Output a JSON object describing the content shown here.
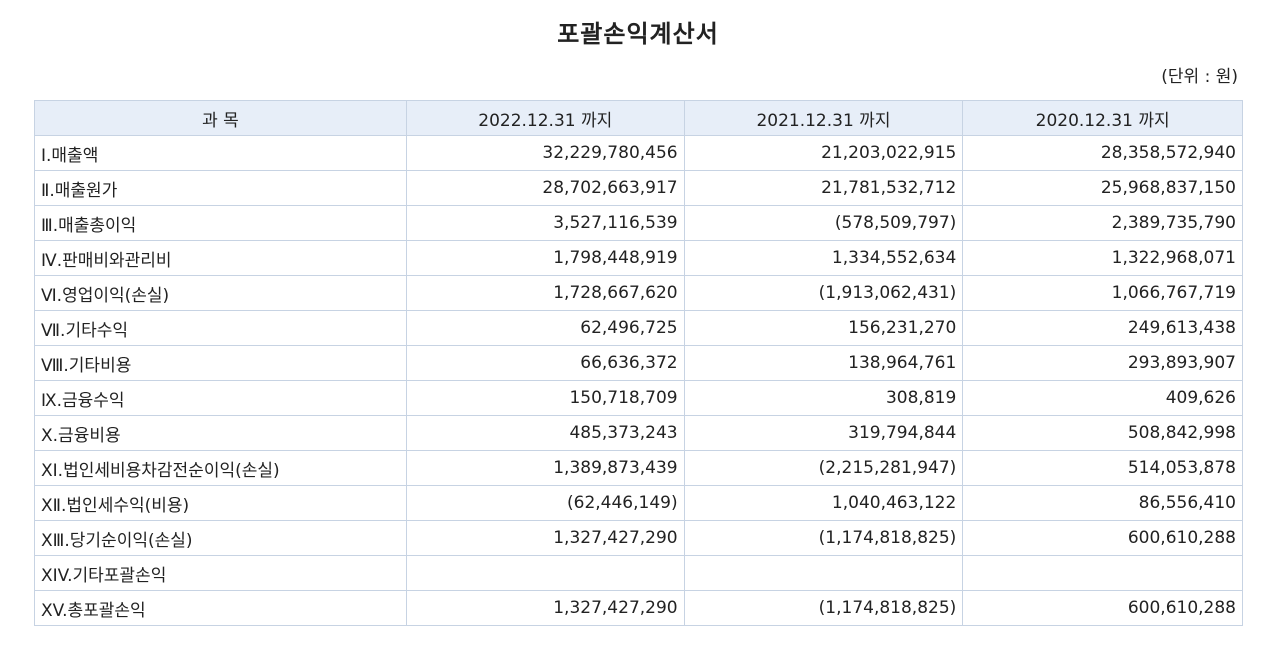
{
  "title": "포괄손익계산서",
  "unit": "(단위 : 원)",
  "headers": [
    "과  목",
    "2022.12.31 까지",
    "2021.12.31 까지",
    "2020.12.31 까지"
  ],
  "rows": [
    {
      "name": "Ⅰ.매출액",
      "v2022": "32,229,780,456",
      "v2021": "21,203,022,915",
      "v2020": "28,358,572,940"
    },
    {
      "name": "Ⅱ.매출원가",
      "v2022": "28,702,663,917",
      "v2021": "21,781,532,712",
      "v2020": "25,968,837,150"
    },
    {
      "name": "Ⅲ.매출총이익",
      "v2022": "3,527,116,539",
      "v2021": "(578,509,797)",
      "v2020": "2,389,735,790"
    },
    {
      "name": "Ⅳ.판매비와관리비",
      "v2022": "1,798,448,919",
      "v2021": "1,334,552,634",
      "v2020": "1,322,968,071"
    },
    {
      "name": "Ⅵ.영업이익(손실)",
      "v2022": "1,728,667,620",
      "v2021": "(1,913,062,431)",
      "v2020": "1,066,767,719"
    },
    {
      "name": "Ⅶ.기타수익",
      "v2022": "62,496,725",
      "v2021": "156,231,270",
      "v2020": "249,613,438"
    },
    {
      "name": "Ⅷ.기타비용",
      "v2022": "66,636,372",
      "v2021": "138,964,761",
      "v2020": "293,893,907"
    },
    {
      "name": "Ⅸ.금융수익",
      "v2022": "150,718,709",
      "v2021": "308,819",
      "v2020": "409,626"
    },
    {
      "name": "Ⅹ.금융비용",
      "v2022": "485,373,243",
      "v2021": "319,794,844",
      "v2020": "508,842,998"
    },
    {
      "name": "XI.법인세비용차감전순이익(손실)",
      "v2022": "1,389,873,439",
      "v2021": "(2,215,281,947)",
      "v2020": "514,053,878"
    },
    {
      "name": "ⅩⅡ.법인세수익(비용)",
      "v2022": "(62,446,149)",
      "v2021": "1,040,463,122",
      "v2020": "86,556,410"
    },
    {
      "name": "ⅩⅢ.당기순이익(손실)",
      "v2022": "1,327,427,290",
      "v2021": "(1,174,818,825)",
      "v2020": "600,610,288"
    },
    {
      "name": "XIV.기타포괄손익",
      "v2022": "",
      "v2021": "",
      "v2020": ""
    },
    {
      "name": "XV.총포괄손익",
      "v2022": "1,327,427,290",
      "v2021": "(1,174,818,825)",
      "v2020": "600,610,288"
    }
  ]
}
